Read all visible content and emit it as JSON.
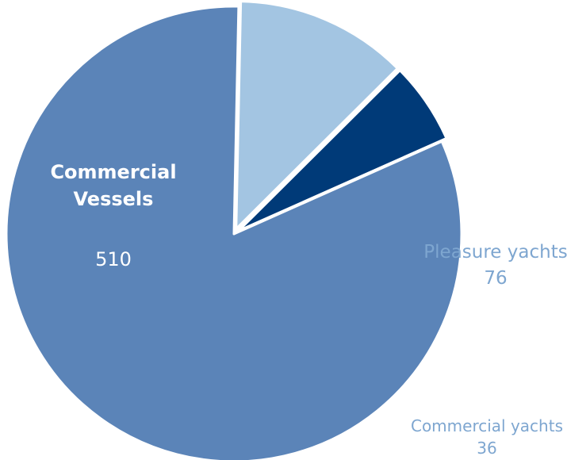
{
  "chart_data": {
    "type": "pie",
    "slices": [
      {
        "label_lines": [
          "Commercial",
          "Vessels"
        ],
        "value": 510,
        "value_text": "510",
        "color": "#5b84b8",
        "label_style": "inside-bold",
        "label_color": "#ffffff"
      },
      {
        "label_lines": [
          "Pleasure yachts"
        ],
        "value": 76,
        "value_text": "76",
        "color": "#a3c5e2",
        "label_style": "outside",
        "label_color": "#7ea6d0"
      },
      {
        "label_lines": [
          "Commercial yachts"
        ],
        "value": 36,
        "value_text": "36",
        "color": "#003a78",
        "label_style": "outside",
        "label_color": "#7ea6d0"
      }
    ],
    "start_angle_deg": 66,
    "direction": "clockwise",
    "legend": "none",
    "background": "#ffffff",
    "slice_border_color": "#ffffff"
  }
}
